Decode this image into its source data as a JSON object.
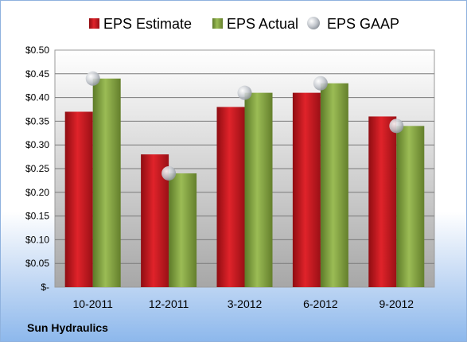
{
  "chart_data": {
    "type": "bar",
    "categories": [
      "10-2011",
      "12-2011",
      "3-2012",
      "6-2012",
      "9-2012"
    ],
    "series": [
      {
        "name": "EPS Estimate",
        "values": [
          0.37,
          0.28,
          0.38,
          0.41,
          0.36
        ],
        "color": "#c0141c"
      },
      {
        "name": "EPS Actual",
        "values": [
          0.44,
          0.24,
          0.41,
          0.43,
          0.34
        ],
        "color": "#7a9a3a"
      }
    ],
    "markers": {
      "name": "EPS GAAP",
      "values": [
        0.44,
        0.24,
        0.41,
        0.43,
        0.34
      ],
      "color": "#b9bec6"
    },
    "y_ticks": [
      "$-",
      "$0.05",
      "$0.10",
      "$0.15",
      "$0.20",
      "$0.25",
      "$0.30",
      "$0.35",
      "$0.40",
      "$0.45",
      "$0.50"
    ],
    "ylim": [
      0,
      0.5
    ],
    "grid": true,
    "legend_position": "top",
    "title": "",
    "xlabel": "",
    "ylabel": ""
  },
  "brand": "Sun Hydraulics"
}
